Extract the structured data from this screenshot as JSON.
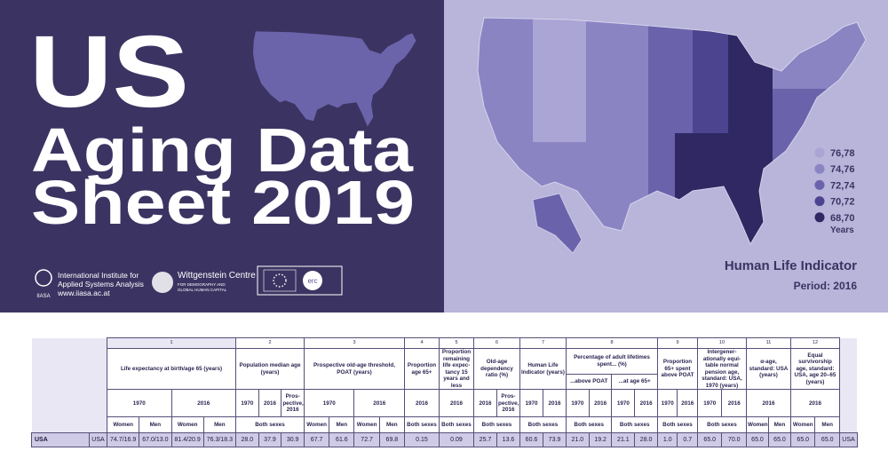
{
  "header": {
    "title_lines": [
      "US",
      "Aging Data",
      "Sheet 2019"
    ],
    "logos": {
      "iiasa": {
        "abbr": "IIASA",
        "lines": [
          "International Institute for",
          "Applied Systems Analysis",
          "www.iiasa.ac.at"
        ]
      },
      "wittgenstein": {
        "name": "Wittgenstein Centre",
        "lines": [
          "FOR DEMOGRAPHY AND",
          "GLOBAL HUMAN CAPITAL"
        ]
      },
      "erc": "erc"
    }
  },
  "map": {
    "legend": [
      {
        "label": "76,78",
        "color": "#aaa5d4"
      },
      {
        "label": "74,76",
        "color": "#8a84c3"
      },
      {
        "label": "72,74",
        "color": "#6a63ab"
      },
      {
        "label": "70,72",
        "color": "#4c448f"
      },
      {
        "label": "68,70",
        "color": "#2f2862"
      }
    ],
    "legend_unit": "Years",
    "title": "Human Life Indicator",
    "period": "Period: 2016"
  },
  "table": {
    "groups": [
      {
        "number": "1",
        "title": "Life expectancy at birth/age 65 (years)",
        "years": [
          {
            "label": "1970",
            "span": 2
          },
          {
            "label": "2016",
            "span": 2
          }
        ],
        "sexes": [
          {
            "label": "Women",
            "span": 1
          },
          {
            "label": "Men",
            "span": 1
          },
          {
            "label": "Women",
            "span": 1
          },
          {
            "label": "Men",
            "span": 1
          }
        ]
      },
      {
        "number": "2",
        "title": "Population median age (years)",
        "years": [
          {
            "label": "1970",
            "span": 1
          },
          {
            "label": "2016",
            "span": 1
          },
          {
            "label": "Pros-pective, 2016",
            "span": 1
          }
        ],
        "sexes": [
          {
            "label": "Both sexes",
            "span": 3
          }
        ]
      },
      {
        "number": "3",
        "title": "Prospective old-age threshold, POAT (years)",
        "years": [
          {
            "label": "1970",
            "span": 2
          },
          {
            "label": "2016",
            "span": 2
          }
        ],
        "sexes": [
          {
            "label": "Women",
            "span": 1
          },
          {
            "label": "Men",
            "span": 1
          },
          {
            "label": "Women",
            "span": 1
          },
          {
            "label": "Men",
            "span": 1
          }
        ]
      },
      {
        "number": "4",
        "title": "Proportion age 65+",
        "years": [
          {
            "label": "2016",
            "span": 1
          }
        ],
        "sexes": [
          {
            "label": "Both sexes",
            "span": 1
          }
        ]
      },
      {
        "number": "5",
        "title": "Proportion remaining life expec-tancy 15 years and less",
        "years": [
          {
            "label": "2016",
            "span": 1
          }
        ],
        "sexes": [
          {
            "label": "Both sexes",
            "span": 1
          }
        ]
      },
      {
        "number": "6",
        "title": "Old-age dependency ratio (%)",
        "years": [
          {
            "label": "2016",
            "span": 1
          },
          {
            "label": "Pros-pective, 2016",
            "span": 1
          }
        ],
        "sexes": [
          {
            "label": "Both sexes",
            "span": 2
          }
        ]
      },
      {
        "number": "7",
        "title": "Human Life Indicator (years)",
        "years": [
          {
            "label": "1970",
            "span": 1
          },
          {
            "label": "2016",
            "span": 1
          }
        ],
        "sexes": [
          {
            "label": "Both sexes",
            "span": 2
          }
        ]
      },
      {
        "number": "8",
        "title": "Percentage of adult lifetimes spent... (%)",
        "subs": [
          {
            "label": "...above POAT",
            "span": 2
          },
          {
            "label": "...at age 65+",
            "span": 2
          }
        ],
        "years": [
          {
            "label": "1970",
            "span": 1
          },
          {
            "label": "2016",
            "span": 1
          },
          {
            "label": "1970",
            "span": 1
          },
          {
            "label": "2016",
            "span": 1
          }
        ],
        "sexes": [
          {
            "label": "Both sexes",
            "span": 2
          },
          {
            "label": "Both sexes",
            "span": 2
          }
        ]
      },
      {
        "number": "9",
        "title": "Proportion 65+ spent above POAT",
        "years": [
          {
            "label": "1970",
            "span": 1
          },
          {
            "label": "2016",
            "span": 1
          }
        ],
        "sexes": [
          {
            "label": "Both sexes",
            "span": 2
          }
        ]
      },
      {
        "number": "10",
        "title": "Intergener-ationally equi-table normal pension age, standard: USA, 1970 (years)",
        "years": [
          {
            "label": "1970",
            "span": 1
          },
          {
            "label": "2016",
            "span": 1
          }
        ],
        "sexes": [
          {
            "label": "Both sexes",
            "span": 2
          }
        ]
      },
      {
        "number": "11",
        "title": "α-age, standard: USA (years)",
        "years": [
          {
            "label": "2016",
            "span": 2
          }
        ],
        "sexes": [
          {
            "label": "Women",
            "span": 1
          },
          {
            "label": "Men",
            "span": 1
          }
        ]
      },
      {
        "number": "12",
        "title": "Equal survivorship age, standard: USA, age 20–65 (years)",
        "years": [
          {
            "label": "2016",
            "span": 2
          }
        ],
        "sexes": [
          {
            "label": "Women",
            "span": 1
          },
          {
            "label": "Men",
            "span": 1
          }
        ]
      }
    ],
    "rows": [
      {
        "name": "USA",
        "code": "USA",
        "values": [
          "74.7/16.9",
          "67.0/13.0",
          "81.4/20.9",
          "76.3/18.3",
          "28.0",
          "37.9",
          "30.9",
          "67.7",
          "61.6",
          "72.7",
          "69.8",
          "0.15",
          "0.09",
          "25.7",
          "13.6",
          "60.6",
          "73.9",
          "21.0",
          "19.2",
          "21.1",
          "28.0",
          "1.0",
          "0.7",
          "65.0",
          "70.0",
          "65.0",
          "65.0",
          "65.0",
          "65.0"
        ],
        "code_right": "USA"
      }
    ]
  }
}
